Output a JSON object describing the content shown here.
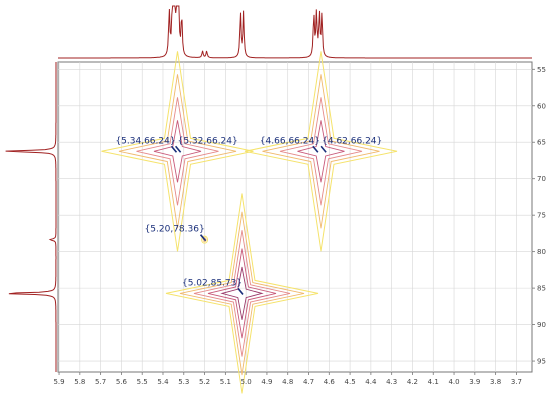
{
  "chart_data": {
    "type": "2d-nmr-contour",
    "x_axis": {
      "ticks": [
        5.9,
        5.8,
        5.7,
        5.6,
        5.5,
        5.4,
        5.3,
        5.2,
        5.1,
        5.0,
        4.9,
        4.8,
        4.7,
        4.6,
        4.5,
        4.4,
        4.3,
        4.2,
        4.1,
        4.0,
        3.9,
        3.8,
        3.7
      ],
      "tick_labels": [
        "5.9",
        "5.8",
        "5.7",
        "5.6",
        "5.5",
        "5.4",
        "5.3",
        "5.2",
        "5.1",
        "5.0",
        "4.9",
        "4.8",
        "4.7",
        "4.6",
        "4.5",
        "4.4",
        "4.3",
        "4.2",
        "4.1",
        "4.0",
        "3.9",
        "3.8",
        "3.7"
      ],
      "range": [
        5.905,
        3.625
      ],
      "reversed": true
    },
    "y_axis": {
      "ticks": [
        55,
        60,
        65,
        70,
        75,
        80,
        85,
        90,
        95
      ],
      "tick_labels": [
        "55",
        "60",
        "65",
        "70",
        "75",
        "80",
        "85",
        "90",
        "95"
      ],
      "range": [
        54,
        96.5
      ],
      "reversed": true,
      "position": "right"
    },
    "grid": true,
    "peaks": [
      {
        "label": "{5.34,66.24}",
        "x": 5.34,
        "y": 66.24
      },
      {
        "label": "{5.32,66.24}",
        "x": 5.32,
        "y": 66.24
      },
      {
        "label": "{4.66,66.24}",
        "x": 4.66,
        "y": 66.24
      },
      {
        "label": "{4.62,66.24}",
        "x": 4.62,
        "y": 66.24
      },
      {
        "label": "{5.20,78.36}",
        "x": 5.2,
        "y": 78.36
      },
      {
        "label": "{5.02,85.73}",
        "x": 5.02,
        "y": 85.73
      }
    ],
    "contour_clusters": [
      {
        "name": "cluster-5.33",
        "x": 5.33,
        "y": 66.24,
        "intensity": 1.0,
        "contour_levels": 4
      },
      {
        "name": "cluster-4.64",
        "x": 4.64,
        "y": 66.24,
        "intensity": 1.0,
        "contour_levels": 4
      },
      {
        "name": "cluster-5.02",
        "x": 5.02,
        "y": 85.73,
        "intensity": 1.0,
        "contour_levels": 5
      },
      {
        "name": "cluster-5.20",
        "x": 5.2,
        "y": 78.36,
        "intensity": 0.25,
        "contour_levels": 1
      }
    ],
    "proton_projection": {
      "multiplets": [
        {
          "center": 5.35,
          "height": 1.0,
          "lines": [
            -0.02,
            -0.005,
            0.005,
            0.02
          ]
        },
        {
          "center": 5.33,
          "height": 0.9,
          "lines": [
            -0.02,
            -0.005,
            0.005,
            0.02
          ]
        },
        {
          "center": 5.02,
          "height": 1.0,
          "lines": [
            -0.008,
            0.008
          ]
        },
        {
          "center": 4.655,
          "height": 0.95,
          "lines": [
            -0.02,
            -0.007,
            0.007,
            0.02
          ]
        },
        {
          "center": 5.2,
          "height": 0.15,
          "lines": [
            -0.01,
            0.01
          ]
        }
      ]
    },
    "carbon_projection": {
      "peaks": [
        {
          "position": 66.24,
          "height": 1.0
        },
        {
          "position": 85.73,
          "height": 1.0
        },
        {
          "position": 78.36,
          "height": 0.12
        }
      ]
    },
    "colors": {
      "frame": "#777777",
      "grid": "#d6d6d6",
      "projection": "#a02020",
      "contour_levels": [
        "#f5e36b",
        "#f0b96d",
        "#e58a8a",
        "#c85a7a",
        "#9a3a6a"
      ],
      "peak_label": "#1a2f7a",
      "peak_marker": "#1a2f7a"
    }
  }
}
